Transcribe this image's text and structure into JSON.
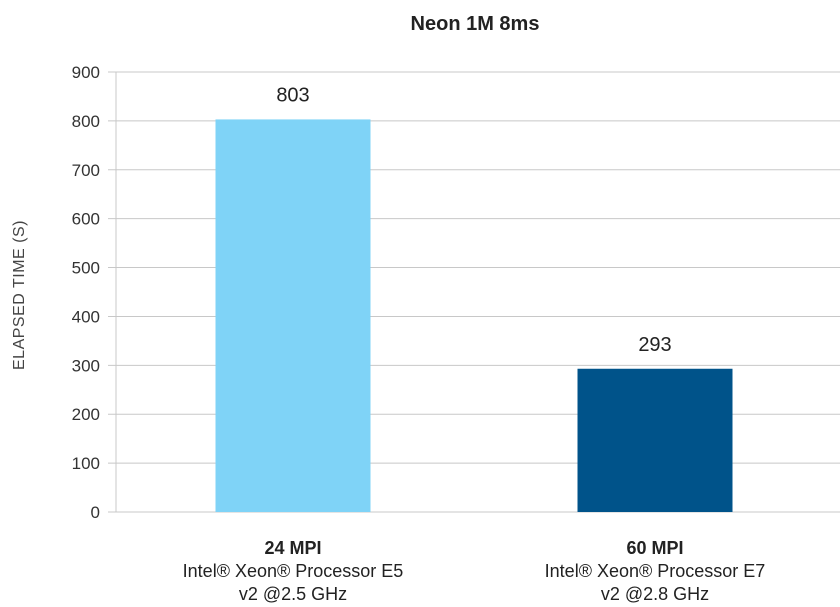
{
  "chart_data": {
    "type": "bar",
    "title": "Neon 1M 8ms",
    "ylabel": "ELAPSED TIME (S)",
    "xlabel": "",
    "ylim": [
      0,
      900
    ],
    "yticks": [
      0,
      100,
      200,
      300,
      400,
      500,
      600,
      700,
      800,
      900
    ],
    "grid": true,
    "categories": [
      {
        "title": "24 MPI",
        "line1": "Intel® Xeon® Processor E5",
        "line2": "v2 @2.5 GHz"
      },
      {
        "title": "60 MPI",
        "line1": "Intel® Xeon® Processor E7",
        "line2": "v2 @2.8 GHz"
      }
    ],
    "values": [
      803,
      293
    ],
    "data_labels": [
      "803",
      "293"
    ],
    "colors": [
      "#7fd3f7",
      "#00538a"
    ]
  }
}
